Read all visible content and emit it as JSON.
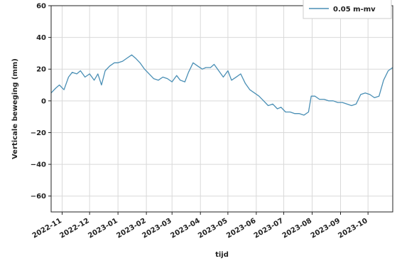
{
  "chart_data": {
    "type": "line",
    "xlabel": "tijd",
    "ylabel": "Verticale beweging (mm)",
    "ylim": [
      -70,
      60
    ],
    "yticks": [
      -60,
      -40,
      -20,
      0,
      20,
      40,
      60
    ],
    "xlim": [
      "2022-10-20",
      "2023-10-28"
    ],
    "xticks": [
      "2022-11",
      "2022-12",
      "2023-01",
      "2023-02",
      "2023-03",
      "2023-04",
      "2023-05",
      "2023-06",
      "2023-07",
      "2023-08",
      "2023-09",
      "2023-10"
    ],
    "grid": true,
    "legend": "top-right",
    "colors": {
      "series": "#4a8fb5",
      "grid": "#d9d9d9"
    },
    "series": [
      {
        "name": "0.05 m-mv",
        "x": [
          "2022-10-20",
          "2022-10-25",
          "2022-10-29",
          "2022-11-03",
          "2022-11-08",
          "2022-11-12",
          "2022-11-17",
          "2022-11-21",
          "2022-11-26",
          "2022-12-01",
          "2022-12-06",
          "2022-12-10",
          "2022-12-14",
          "2022-12-18",
          "2022-12-23",
          "2022-12-28",
          "2023-01-01",
          "2023-01-06",
          "2023-01-11",
          "2023-01-16",
          "2023-01-20",
          "2023-01-25",
          "2023-01-30",
          "2023-02-04",
          "2023-02-09",
          "2023-02-14",
          "2023-02-19",
          "2023-02-24",
          "2023-03-01",
          "2023-03-06",
          "2023-03-10",
          "2023-03-15",
          "2023-03-19",
          "2023-03-24",
          "2023-03-29",
          "2023-04-03",
          "2023-04-07",
          "2023-04-12",
          "2023-04-16",
          "2023-04-21",
          "2023-04-26",
          "2023-05-01",
          "2023-05-05",
          "2023-05-10",
          "2023-05-15",
          "2023-05-20",
          "2023-05-25",
          "2023-05-30",
          "2023-06-04",
          "2023-06-09",
          "2023-06-14",
          "2023-06-19",
          "2023-06-24",
          "2023-06-28",
          "2023-07-03",
          "2023-07-08",
          "2023-07-13",
          "2023-07-18",
          "2023-07-23",
          "2023-07-28",
          "2023-07-31",
          "2023-08-04",
          "2023-08-09",
          "2023-08-14",
          "2023-08-19",
          "2023-08-24",
          "2023-08-29",
          "2023-09-03",
          "2023-09-08",
          "2023-09-13",
          "2023-09-18",
          "2023-09-23",
          "2023-09-28",
          "2023-10-03",
          "2023-10-08",
          "2023-10-13",
          "2023-10-18",
          "2023-10-23",
          "2023-10-28"
        ],
        "y": [
          5,
          8,
          10,
          7,
          15,
          18,
          17,
          19,
          15,
          17,
          13,
          17,
          10,
          19,
          22,
          24,
          24,
          25,
          27,
          29,
          27,
          24,
          20,
          17,
          14,
          13,
          15,
          14,
          12,
          16,
          13,
          12,
          18,
          24,
          22,
          20,
          21,
          21,
          23,
          19,
          15,
          19,
          13,
          15,
          17,
          11,
          7,
          5,
          3,
          0,
          -3,
          -2,
          -5,
          -4,
          -7,
          -7,
          -8,
          -8,
          -9,
          -7,
          3,
          3,
          1,
          1,
          0,
          0,
          -1,
          -1,
          -2,
          -3,
          -2,
          4,
          5,
          4,
          2,
          3,
          13,
          19,
          21
        ]
      }
    ]
  }
}
